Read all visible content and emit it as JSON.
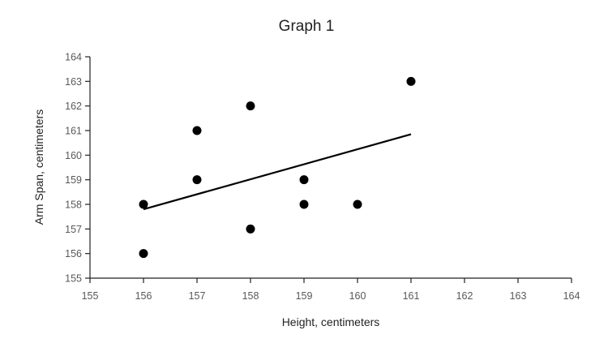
{
  "chart_data": {
    "type": "scatter",
    "title": "Graph 1",
    "xlabel": "Height, centimeters",
    "ylabel": "Arm Span, centimeters",
    "xlim": [
      155,
      164
    ],
    "ylim": [
      155,
      164
    ],
    "xticks": [
      155,
      156,
      157,
      158,
      159,
      160,
      161,
      162,
      163,
      164
    ],
    "yticks": [
      155,
      156,
      157,
      158,
      159,
      160,
      161,
      162,
      163,
      164
    ],
    "grid": false,
    "points": [
      {
        "x": 156,
        "y": 158
      },
      {
        "x": 156,
        "y": 156
      },
      {
        "x": 157,
        "y": 161
      },
      {
        "x": 157,
        "y": 159
      },
      {
        "x": 158,
        "y": 162
      },
      {
        "x": 158,
        "y": 157
      },
      {
        "x": 159,
        "y": 159
      },
      {
        "x": 159,
        "y": 158
      },
      {
        "x": 160,
        "y": 158
      },
      {
        "x": 161,
        "y": 163
      }
    ],
    "trendline": {
      "x": [
        156,
        161
      ],
      "y": [
        157.8,
        160.85
      ]
    },
    "colors": {
      "marker": "#000000",
      "trendline": "#000000",
      "axis": "#222222",
      "tick_text": "#595959"
    }
  }
}
